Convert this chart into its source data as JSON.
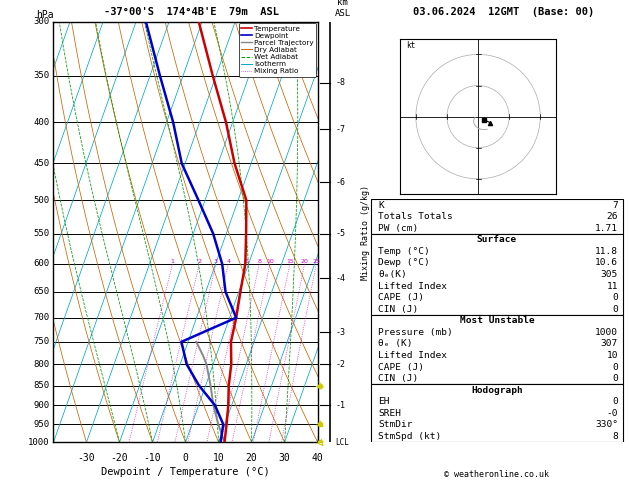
{
  "title_left": "-37°00'S  174°4B'E  79m  ASL",
  "title_right": "03.06.2024  12GMT  (Base: 00)",
  "xlabel": "Dewpoint / Temperature (°C)",
  "ylabel_left": "hPa",
  "pressure_levels": [
    300,
    350,
    400,
    450,
    500,
    550,
    600,
    650,
    700,
    750,
    800,
    850,
    900,
    950,
    1000
  ],
  "temp_profile_p": [
    1000,
    950,
    900,
    850,
    800,
    750,
    700,
    650,
    600,
    550,
    500,
    450,
    400,
    350,
    300
  ],
  "temp_profile_T": [
    11.8,
    10.5,
    9.0,
    7.0,
    5.5,
    3.0,
    2.0,
    0.5,
    -1.0,
    -4.0,
    -7.5,
    -15.0,
    -22.0,
    -31.0,
    -41.0
  ],
  "dewp_profile_p": [
    1000,
    950,
    900,
    850,
    800,
    750,
    700,
    650,
    600,
    550,
    500,
    450,
    400,
    350,
    300
  ],
  "dewp_profile_T": [
    10.6,
    9.5,
    5.0,
    -2.0,
    -8.0,
    -12.0,
    2.0,
    -4.0,
    -8.0,
    -14.0,
    -22.0,
    -31.0,
    -38.0,
    -47.0,
    -57.0
  ],
  "parcel_p": [
    1000,
    950,
    900,
    850,
    800,
    780,
    750
  ],
  "parcel_T": [
    11.8,
    8.0,
    4.5,
    1.5,
    -2.0,
    -4.0,
    -7.5
  ],
  "mixing_ratio_vals": [
    1,
    2,
    3,
    4,
    6,
    8,
    10,
    15,
    20,
    25
  ],
  "km_ticks": [
    1,
    2,
    3,
    4,
    5,
    6,
    7,
    8
  ],
  "km_pressures": [
    900,
    800,
    730,
    625,
    550,
    475,
    408,
    357
  ],
  "color_temp": "#cc0000",
  "color_dewp": "#0000cc",
  "color_parcel": "#888888",
  "color_dry_adiabat": "#cc6600",
  "color_wet_adiabat": "#009900",
  "color_isotherm": "#00aacc",
  "color_mixing": "#cc00cc",
  "color_wind": "#cccc00",
  "info_K": 7,
  "info_TT": 26,
  "info_PW": 1.71,
  "sfc_temp": 11.8,
  "sfc_dewp": 10.6,
  "sfc_theta_e": 305,
  "sfc_LI": 11,
  "sfc_CAPE": 0,
  "sfc_CIN": 0,
  "mu_pressure": 1000,
  "mu_theta_e": 307,
  "mu_LI": 10,
  "mu_CAPE": 0,
  "mu_CIN": 0,
  "hodo_EH": 0,
  "hodo_SREH": "-0",
  "hodo_StmDir": "330°",
  "hodo_StmSpd": 8,
  "copyright": "© weatheronline.co.uk"
}
